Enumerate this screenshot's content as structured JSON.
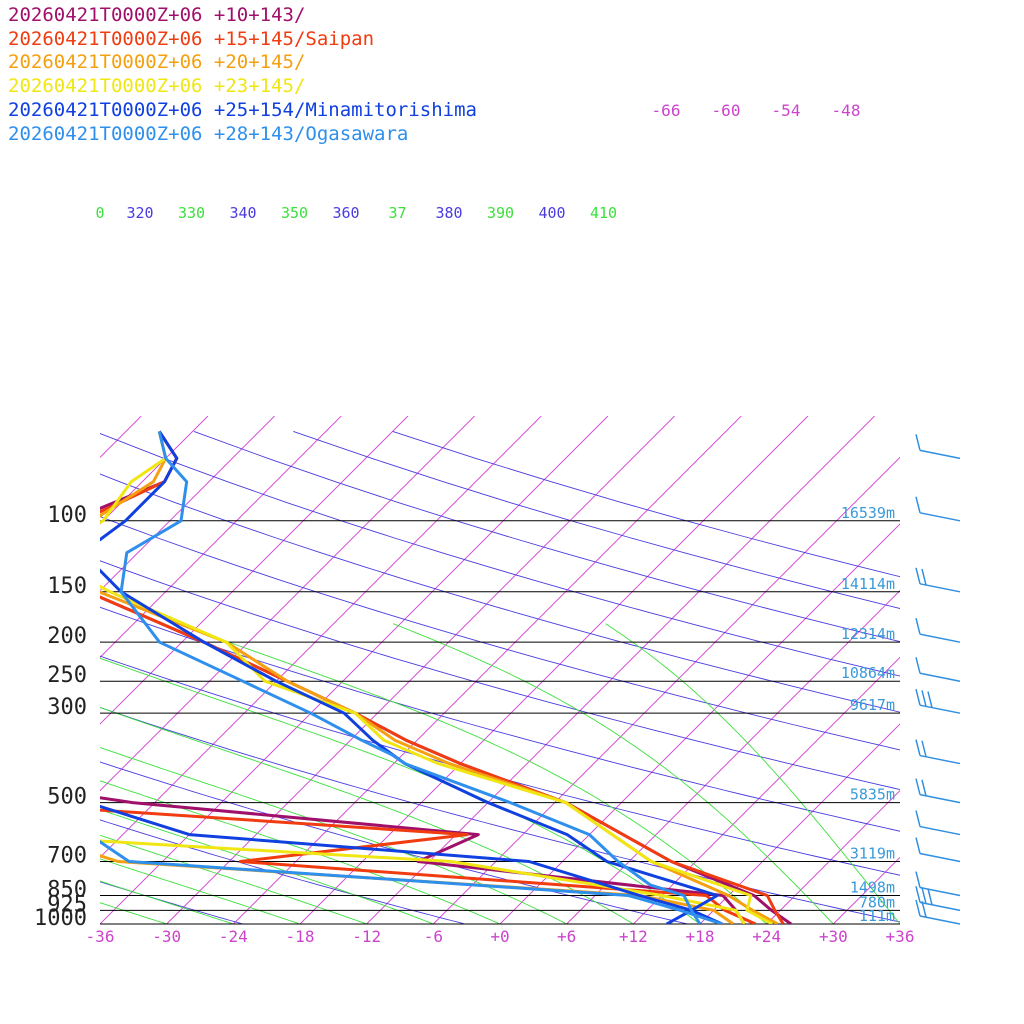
{
  "colors": {
    "isotherm": "#d23cd2",
    "isotherm_label": "#cc44cc",
    "dry_adiabat": "#4a3ce0",
    "moist_adiabat": "#3ce03c",
    "isobar": "#000000",
    "height_label": "#3a9ad9",
    "wind_barb": "#2f8fe0"
  },
  "chart_data": {
    "type": "skew-t",
    "pressure_levels": [
      100,
      150,
      200,
      250,
      300,
      500,
      700,
      850,
      925,
      1000
    ],
    "pressure_labels": [
      "100",
      "150",
      "200",
      "250",
      "300",
      "500",
      "700",
      "850",
      "925",
      "1000"
    ],
    "heights": [
      {
        "p": 100,
        "label": "16539m"
      },
      {
        "p": 150,
        "label": "14114m"
      },
      {
        "p": 200,
        "label": "12314m"
      },
      {
        "p": 250,
        "label": "10864m"
      },
      {
        "p": 300,
        "label": "9617m"
      },
      {
        "p": 500,
        "label": "5835m"
      },
      {
        "p": 700,
        "label": "3119m"
      },
      {
        "p": 850,
        "label": "1498m"
      },
      {
        "p": 925,
        "label": "780m"
      },
      {
        "p": 1000,
        "label": "111m"
      }
    ],
    "bottom_temperature_labels": [
      "-36",
      "-30",
      "-24",
      "-18",
      "-12",
      "-6",
      "+0",
      "+6",
      "+12",
      "+18",
      "+24",
      "+30",
      "+36"
    ],
    "bottom_temperature_values": [
      -36,
      -30,
      -24,
      -18,
      -12,
      -6,
      0,
      6,
      12,
      18,
      24,
      30,
      36
    ],
    "top_temperature_labels": [
      "-66",
      "-60",
      "-54",
      "-48"
    ],
    "theta_labels": [
      {
        "text": "0",
        "kind": "moist"
      },
      {
        "text": "320",
        "kind": "dry"
      },
      {
        "text": "330",
        "kind": "moist"
      },
      {
        "text": "340",
        "kind": "dry"
      },
      {
        "text": "350",
        "kind": "moist"
      },
      {
        "text": "360",
        "kind": "dry"
      },
      {
        "text": "37",
        "kind": "moist"
      },
      {
        "text": "380",
        "kind": "dry"
      },
      {
        "text": "390",
        "kind": "moist"
      },
      {
        "text": "400",
        "kind": "dry"
      },
      {
        "text": "410",
        "kind": "moist"
      }
    ],
    "xlim": [
      -36,
      36
    ],
    "series": [
      {
        "name": "20260421T0000Z+06 +10+143/",
        "color": "#a0106a",
        "temperature": [
          [
            60,
            -75
          ],
          [
            70,
            -71
          ],
          [
            80,
            -70
          ],
          [
            100,
            -75
          ],
          [
            120,
            -78
          ],
          [
            150,
            -67
          ],
          [
            200,
            -52
          ],
          [
            250,
            -41
          ],
          [
            300,
            -32
          ],
          [
            350,
            -25
          ],
          [
            400,
            -18
          ],
          [
            500,
            -5
          ],
          [
            700,
            9.8
          ],
          [
            850,
            20.3
          ],
          [
            925,
            23.2
          ],
          [
            1000,
            26.2
          ]
        ],
        "dewpoint": [
          [
            300,
            -59
          ],
          [
            400,
            -71
          ],
          [
            500,
            -44
          ],
          [
            600,
            -10
          ],
          [
            700,
            -13
          ],
          [
            850,
            17.5
          ],
          [
            925,
            20
          ],
          [
            1000,
            22
          ]
        ]
      },
      {
        "name": "20260421T0000Z+06 +15+145/Saipan",
        "color": "#f03c10",
        "temperature": [
          [
            60,
            -75
          ],
          [
            70,
            -71
          ],
          [
            80,
            -70
          ],
          [
            100,
            -74
          ],
          [
            120,
            -77
          ],
          [
            150,
            -67
          ],
          [
            200,
            -52
          ],
          [
            250,
            -41
          ],
          [
            300,
            -32
          ],
          [
            350,
            -25
          ],
          [
            400,
            -18
          ],
          [
            500,
            -5
          ],
          [
            700,
            9.8
          ],
          [
            850,
            21.5
          ],
          [
            925,
            23.5
          ],
          [
            1000,
            25.5
          ]
        ],
        "dewpoint": [
          [
            300,
            -64
          ],
          [
            400,
            -71
          ],
          [
            500,
            -57
          ],
          [
            600,
            -11
          ],
          [
            700,
            -29
          ],
          [
            850,
            16
          ],
          [
            925,
            19
          ],
          [
            1000,
            23
          ]
        ]
      },
      {
        "name": "20260421T0000Z+06 +20+145/",
        "color": "#f5a010",
        "temperature": [
          [
            60,
            -75
          ],
          [
            70,
            -72
          ],
          [
            80,
            -71
          ],
          [
            100,
            -73
          ],
          [
            120,
            -76
          ],
          [
            150,
            -66
          ],
          [
            200,
            -50
          ],
          [
            250,
            -41
          ],
          [
            300,
            -32
          ],
          [
            350,
            -26
          ],
          [
            400,
            -19
          ],
          [
            500,
            -5
          ],
          [
            700,
            8
          ],
          [
            850,
            18
          ],
          [
            925,
            21.5
          ],
          [
            1000,
            25
          ]
        ],
        "dewpoint": [
          [
            300,
            -70
          ],
          [
            400,
            -66
          ],
          [
            500,
            -57
          ],
          [
            600,
            -50
          ],
          [
            700,
            -40
          ],
          [
            850,
            10
          ],
          [
            925,
            18
          ],
          [
            1000,
            21
          ]
        ]
      },
      {
        "name": "20260421T0000Z+06 +23+145/",
        "color": "#f0e614",
        "temperature": [
          [
            60,
            -75
          ],
          [
            70,
            -72
          ],
          [
            80,
            -73
          ],
          [
            100,
            -72
          ],
          [
            120,
            -75
          ],
          [
            150,
            -65
          ],
          [
            200,
            -50
          ],
          [
            250,
            -43
          ],
          [
            300,
            -32
          ],
          [
            350,
            -27
          ],
          [
            400,
            -20
          ],
          [
            500,
            -5
          ],
          [
            700,
            8
          ],
          [
            850,
            20
          ],
          [
            925,
            21
          ],
          [
            1000,
            24.5
          ]
        ],
        "dewpoint": [
          [
            300,
            -82
          ],
          [
            400,
            -73
          ],
          [
            500,
            -54
          ],
          [
            600,
            -54
          ],
          [
            700,
            -10
          ],
          [
            850,
            12
          ],
          [
            925,
            20
          ],
          [
            1000,
            22
          ]
        ]
      },
      {
        "name": "20260421T0000Z+06 +25+154/Minamitorishima",
        "color": "#1040e0",
        "temperature": [
          [
            60,
            -75
          ],
          [
            70,
            -71
          ],
          [
            80,
            -70
          ],
          [
            100,
            -70
          ],
          [
            120,
            -71
          ],
          [
            150,
            -64
          ],
          [
            200,
            -52
          ],
          [
            250,
            -42
          ],
          [
            300,
            -33
          ],
          [
            350,
            -28
          ],
          [
            400,
            -23
          ],
          [
            500,
            -12
          ],
          [
            600,
            -2
          ],
          [
            700,
            4
          ],
          [
            850,
            17
          ],
          [
            925,
            16
          ],
          [
            1000,
            15
          ]
        ],
        "dewpoint": [
          [
            300,
            -56
          ],
          [
            400,
            -90
          ],
          [
            500,
            -48
          ],
          [
            600,
            -36
          ],
          [
            700,
            -3
          ],
          [
            850,
            10
          ],
          [
            925,
            16
          ],
          [
            1000,
            20
          ]
        ]
      },
      {
        "name": "20260421T0000Z+06 +28+143/Ogasawara",
        "color": "#2e8fec",
        "temperature": [
          [
            60,
            -75
          ],
          [
            70,
            -72
          ],
          [
            80,
            -68
          ],
          [
            100,
            -65
          ],
          [
            120,
            -67
          ],
          [
            150,
            -64
          ],
          [
            200,
            -56
          ],
          [
            250,
            -45
          ],
          [
            300,
            -36
          ],
          [
            350,
            -29
          ],
          [
            380,
            -25
          ],
          [
            400,
            -23
          ],
          [
            500,
            -10
          ],
          [
            600,
            0
          ],
          [
            700,
            5
          ],
          [
            800,
            10
          ],
          [
            850,
            14
          ],
          [
            925,
            16
          ],
          [
            1000,
            18
          ]
        ],
        "dewpoint": [
          [
            300,
            -68
          ],
          [
            400,
            -64
          ],
          [
            500,
            -100
          ],
          [
            600,
            -45
          ],
          [
            700,
            -39
          ],
          [
            850,
            9
          ],
          [
            925,
            15
          ],
          [
            1000,
            20
          ]
        ]
      }
    ],
    "wind_barbs_pressure": [
      70,
      100,
      150,
      200,
      250,
      300,
      400,
      500,
      600,
      700,
      850,
      925,
      1000
    ]
  }
}
